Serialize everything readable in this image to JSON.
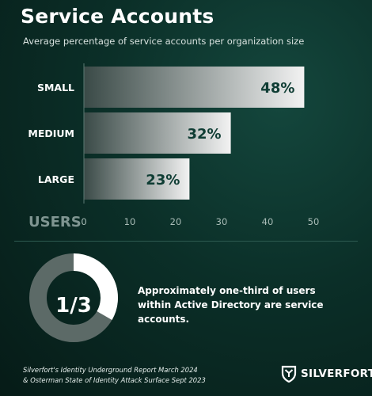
{
  "header": {
    "title": "Service Accounts",
    "subtitle": "Average percentage of service accounts per organization size"
  },
  "chart_data": {
    "type": "bar",
    "orientation": "horizontal",
    "categories": [
      "SMALL",
      "MEDIUM",
      "LARGE"
    ],
    "values": [
      48,
      32,
      23
    ],
    "value_labels": [
      "48%",
      "32%",
      "23%"
    ],
    "xlabel": "USERS",
    "xlim": [
      0,
      50
    ],
    "xticks": [
      0,
      10,
      20,
      30,
      40,
      50
    ],
    "grid": false
  },
  "highlight": {
    "fraction_label": "1/3",
    "fraction": 0.3333,
    "text": "Approximately one-third of users within Active Directory are service accounts."
  },
  "footer": {
    "source_line1": "Silverfort's Identity Underground Report March 2024",
    "source_line2": "& Osterman State of Identity Attack Surface Sept 2023",
    "brand": "SILVERFORT"
  },
  "colors": {
    "bar_start": "#3a4a47",
    "bar_end": "#f2f2f2",
    "value_text": "#0f3d34",
    "donut_track": "#5c6a67",
    "donut_fill": "#ffffff"
  },
  "icons": {
    "logo": "silverfort-shield-icon"
  }
}
